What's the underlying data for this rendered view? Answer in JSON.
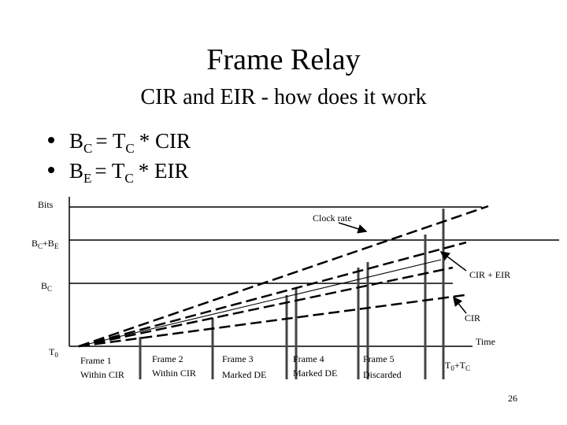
{
  "title": "Frame Relay",
  "subtitle": "CIR and EIR - how does it work",
  "bullets": [
    {
      "b": "B",
      "b_sub": "C",
      "eq": "= T",
      "t_sub": "C",
      "rest": "*  CIR"
    },
    {
      "b": "B",
      "b_sub": "E",
      "eq": "= T",
      "t_sub": "C",
      "rest": "*  EIR"
    }
  ],
  "diagram": {
    "y_axis_label": "Bits",
    "x_axis_label": "Time",
    "clock_rate_label": "Clock rate",
    "cir_eir_label": "CIR + EIR",
    "cir_label": "CIR",
    "bc_be_label": {
      "b1": "B",
      "s1": "C",
      "b2": "+B",
      "s2": "E"
    },
    "bc_label": {
      "b": "B",
      "s": "C"
    },
    "t0_label": {
      "b": "T",
      "s": "0"
    },
    "t0_tc_label": {
      "b1": "T",
      "s1": "0",
      "b2": "+T",
      "s2": "C"
    },
    "frames": [
      {
        "name": "Frame 1",
        "status": "Within CIR"
      },
      {
        "name": "Frame 2",
        "status": "Within CIR"
      },
      {
        "name": "Frame 3",
        "status": "Marked DE"
      },
      {
        "name": "Frame 4",
        "status": "Marked DE"
      },
      {
        "name": "Frame 5",
        "status": "Discarded"
      }
    ]
  },
  "page_number": "26"
}
